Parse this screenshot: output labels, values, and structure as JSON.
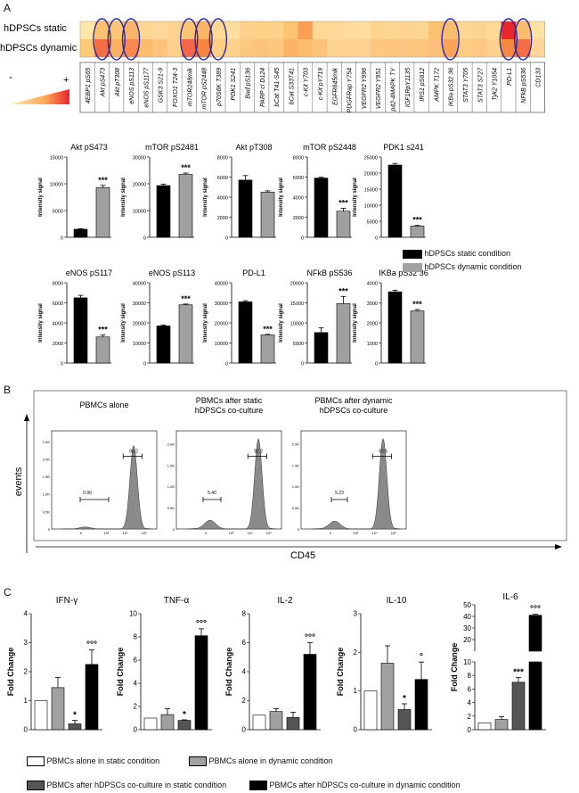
{
  "panels": {
    "a": "A",
    "b": "B",
    "c": "C"
  },
  "heatmap": {
    "row_labels": [
      "hDPSCs static",
      "hDPSCs dynamic"
    ],
    "scale_minus": "-",
    "scale_plus": "+",
    "columns": [
      "4EBP1 pS65",
      "Akt pS473",
      "Akt pT308",
      "eNOS pS113",
      "eNOS pS1177",
      "GSK3 S21-9",
      "FOXO1 T24-3",
      "mTOR248mik",
      "mTOR pS2448",
      "p70S6K T389",
      "PDK1 S241",
      "Bad pS136",
      "PARP cl D124",
      "bCat T41-S45",
      "bCat S33T41",
      "c-Kit Y703",
      "c-Kit pY719",
      "EGFR845mik",
      "PDGFRap Y754",
      "VEGFR2 Y996",
      "VEGFR2 Y951",
      "p42-4MAPK TY",
      "IGF1RpY1135",
      "IRS1 pS612",
      "AMPK T172",
      "IKBa pS32 36",
      "STAT3 Y705",
      "STAT3 S727",
      "Tyk2 Y1054",
      "PD-L1",
      "NFkB pS536",
      "CD133"
    ],
    "static_colors": [
      "#fde7a9",
      "#fcc171",
      "#fcc679",
      "#fbb56a",
      "#fcd692",
      "#fdd89a",
      "#fcd391",
      "#fcc576",
      "#fbb466",
      "#fdd995",
      "#fddda0",
      "#fcd08a",
      "#fcd087",
      "#fcd289",
      "#fcc473",
      "#fa9d55",
      "#fdd896",
      "#fdd899",
      "#fddb9c",
      "#fdde9f",
      "#fcd48e",
      "#fdd792",
      "#fdd48f",
      "#fcd590",
      "#fbc070",
      "#fbbd6d",
      "#fdd695",
      "#fcd391",
      "#fdd996",
      "#e8262b",
      "#fbbd6c",
      "#fde2a4"
    ],
    "dynamic_colors": [
      "#fcc979",
      "#f46d43",
      "#fbb064",
      "#f9874e",
      "#fbbd6d",
      "#fcc37a",
      "#fdd08b",
      "#f4654a",
      "#f8843f",
      "#fcce84",
      "#fcd28b",
      "#fcc87d",
      "#fcc47a",
      "#fcc87d",
      "#fbb468",
      "#fcbe6e",
      "#fcc47a",
      "#fdd390",
      "#fdd191",
      "#fdd293",
      "#fcc881",
      "#fcc57b",
      "#fcc783",
      "#fcc57c",
      "#fcc07b",
      "#f9a35a",
      "#fccc83",
      "#fcc882",
      "#fdd08f",
      "#f7863f",
      "#f46d43",
      "#fdd596"
    ],
    "circled_columns": [
      1,
      2,
      3,
      7,
      8,
      9,
      25,
      29,
      30
    ]
  },
  "bar_legend": {
    "static": "hDPSCs static condition",
    "dynamic": "hDPSCs dynamic condition"
  },
  "chart_data": [
    {
      "type": "bar",
      "title": "Akt pS473",
      "ylabel": "Intensity signal",
      "ylim": [
        0,
        15000
      ],
      "ticks": [
        0,
        5000,
        10000,
        15000
      ],
      "categories": [
        "hDPSCs static condition",
        "hDPSCs dynamic condition"
      ],
      "values": [
        1500,
        9300
      ],
      "errors": [
        100,
        400
      ],
      "significance": "***",
      "colors": [
        "#000000",
        "#a0a0a0"
      ]
    },
    {
      "type": "bar",
      "title": "mTOR pS2481",
      "ylabel": "Intensity signal",
      "ylim": [
        0,
        30000
      ],
      "ticks": [
        0,
        10000,
        20000,
        30000
      ],
      "categories": [
        "hDPSCs static condition",
        "hDPSCs dynamic condition"
      ],
      "values": [
        19300,
        23500
      ],
      "errors": [
        500,
        500
      ],
      "significance": "***",
      "colors": [
        "#000000",
        "#a0a0a0"
      ]
    },
    {
      "type": "bar",
      "title": "Akt pT308",
      "ylabel": "Intensity signal",
      "ylim": [
        0,
        8000
      ],
      "ticks": [
        0,
        2000,
        4000,
        6000,
        8000
      ],
      "categories": [
        "hDPSCs static condition",
        "hDPSCs dynamic condition"
      ],
      "values": [
        5700,
        4500
      ],
      "errors": [
        450,
        130
      ],
      "significance": "",
      "colors": [
        "#000000",
        "#a0a0a0"
      ]
    },
    {
      "type": "bar",
      "title": "mTOR pS2448",
      "ylabel": "Intensity signal",
      "ylim": [
        0,
        8000
      ],
      "ticks": [
        0,
        2000,
        4000,
        6000,
        8000
      ],
      "categories": [
        "hDPSCs static condition",
        "hDPSCs dynamic condition"
      ],
      "values": [
        5900,
        2600
      ],
      "errors": [
        80,
        300
      ],
      "significance": "***",
      "colors": [
        "#000000",
        "#a0a0a0"
      ]
    },
    {
      "type": "bar",
      "title": "PDK1 s241",
      "ylabel": "Intensity signal",
      "ylim": [
        0,
        25000
      ],
      "ticks": [
        0,
        5000,
        10000,
        15000,
        20000,
        25000
      ],
      "categories": [
        "hDPSCs static condition",
        "hDPSCs dynamic condition"
      ],
      "values": [
        22500,
        3500
      ],
      "errors": [
        500,
        200
      ],
      "significance": "***",
      "colors": [
        "#000000",
        "#a0a0a0"
      ]
    },
    {
      "type": "bar",
      "title": "eNOS pS117",
      "ylabel": "Intensity signal",
      "ylim": [
        0,
        8000
      ],
      "ticks": [
        0,
        2000,
        4000,
        6000,
        8000
      ],
      "categories": [
        "hDPSCs static condition",
        "hDPSCs dynamic condition"
      ],
      "values": [
        6500,
        2600
      ],
      "errors": [
        250,
        200
      ],
      "significance": "***",
      "colors": [
        "#000000",
        "#a0a0a0"
      ]
    },
    {
      "type": "bar",
      "title": "eNOS pS113",
      "ylabel": "Intensity signal",
      "ylim": [
        0,
        40000
      ],
      "ticks": [
        0,
        10000,
        20000,
        30000,
        40000
      ],
      "categories": [
        "hDPSCs static condition",
        "hDPSCs dynamic condition"
      ],
      "values": [
        18500,
        29000
      ],
      "errors": [
        500,
        400
      ],
      "significance": "***",
      "colors": [
        "#000000",
        "#a0a0a0"
      ]
    },
    {
      "type": "bar",
      "title": "PD-L1",
      "ylabel": "Intensity signal",
      "ylim": [
        0,
        40000
      ],
      "ticks": [
        0,
        10000,
        20000,
        30000,
        40000
      ],
      "categories": [
        "hDPSCs static condition",
        "hDPSCs dynamic condition"
      ],
      "values": [
        30500,
        14000
      ],
      "errors": [
        600,
        300
      ],
      "significance": "***",
      "colors": [
        "#000000",
        "#a0a0a0"
      ]
    },
    {
      "type": "bar",
      "title": "NFkB pS536",
      "ylabel": "Intensity signal",
      "ylim": [
        0,
        20000
      ],
      "ticks": [
        0,
        5000,
        10000,
        15000,
        20000
      ],
      "categories": [
        "hDPSCs static condition",
        "hDPSCs dynamic condition"
      ],
      "values": [
        7600,
        14800
      ],
      "errors": [
        1200,
        1800
      ],
      "significance": "***",
      "colors": [
        "#000000",
        "#a0a0a0"
      ]
    },
    {
      "type": "bar",
      "title": "IKBa pS32 36",
      "ylabel": "Intensity signal",
      "ylim": [
        0,
        4000
      ],
      "ticks": [
        0,
        1000,
        2000,
        3000,
        4000
      ],
      "categories": [
        "hDPSCs static condition",
        "hDPSCs dynamic condition"
      ],
      "values": [
        3550,
        2600
      ],
      "errors": [
        80,
        70
      ],
      "significance": "***",
      "colors": [
        "#000000",
        "#a0a0a0"
      ]
    },
    {
      "type": "histogram",
      "title": "PBMCs alone",
      "ylabel": "events",
      "xlabel": "CD45",
      "gates": [
        {
          "label": "0.90"
        },
        {
          "label": "98.2"
        }
      ],
      "y_ticks": [
        "0",
        "0.5K",
        "1.0K",
        "1.5K",
        "2.0K",
        "2.5K"
      ],
      "x_ticks": [
        "0",
        "10³",
        "10⁴",
        "10⁵"
      ]
    },
    {
      "type": "histogram",
      "title": "PBMCs after static\nhDPSCs co-culture",
      "xlabel": "CD45",
      "gates": [
        {
          "label": "5.40"
        },
        {
          "label": "92.2"
        }
      ],
      "y_ticks": [
        "0",
        "0.5K",
        "1.0K",
        "1.5K",
        "2.0K"
      ],
      "x_ticks": [
        "0",
        "10³",
        "10⁴",
        "10⁵"
      ]
    },
    {
      "type": "histogram",
      "title": "PBMCs after dynamic\nhDPSCs co-culture",
      "xlabel": "CD45",
      "gates": [
        {
          "label": "5.23"
        },
        {
          "label": "92.5"
        }
      ],
      "y_ticks": [
        "0",
        "0.5K",
        "1.0K",
        "1.5K",
        "2.0K"
      ],
      "x_ticks": [
        "0",
        "10³",
        "10⁴",
        "10⁵"
      ]
    },
    {
      "type": "bar",
      "title": "IFN-γ",
      "ylabel": "Fold Change",
      "ylim": [
        0,
        4
      ],
      "ticks": [
        0,
        1,
        2,
        3,
        4
      ],
      "categories": [
        "PBMCs alone in static condition",
        "PBMCs alone in dynamic condition",
        "PBMCs after hDPSCs co-culture in static condition",
        "PBMCs after hDPSCs co-culture in dynamic condition"
      ],
      "values": [
        1.0,
        1.45,
        0.2,
        2.25
      ],
      "errors": [
        0,
        0.35,
        0.12,
        0.5
      ],
      "significance": [
        "",
        "",
        "*",
        "°°°"
      ],
      "colors": [
        "#ffffff",
        "#a0a0a0",
        "#555555",
        "#000000"
      ]
    },
    {
      "type": "bar",
      "title": "TNF-α",
      "ylabel": "Fold Change",
      "ylim": [
        0,
        10
      ],
      "ticks": [
        0,
        2,
        4,
        6,
        8,
        10
      ],
      "categories": [
        "PBMCs alone in static condition",
        "PBMCs alone in dynamic condition",
        "PBMCs after hDPSCs co-culture in static condition",
        "PBMCs after hDPSCs co-culture in dynamic condition"
      ],
      "values": [
        1.0,
        1.3,
        0.8,
        8.1
      ],
      "errors": [
        0,
        0.5,
        0.05,
        0.6
      ],
      "significance": [
        "",
        "",
        "*",
        "°°°"
      ],
      "colors": [
        "#ffffff",
        "#a0a0a0",
        "#555555",
        "#000000"
      ]
    },
    {
      "type": "bar",
      "title": "IL-2",
      "ylabel": "Fold Change",
      "ylim": [
        0,
        8
      ],
      "ticks": [
        0,
        2,
        4,
        6,
        8
      ],
      "categories": [
        "PBMCs alone in static condition",
        "PBMCs alone in dynamic condition",
        "PBMCs after hDPSCs co-culture in static condition",
        "PBMCs after hDPSCs co-culture in dynamic condition"
      ],
      "values": [
        1.0,
        1.25,
        0.85,
        5.2
      ],
      "errors": [
        0,
        0.2,
        0.35,
        0.8
      ],
      "significance": [
        "",
        "",
        "",
        "°°°"
      ],
      "colors": [
        "#ffffff",
        "#a0a0a0",
        "#555555",
        "#000000"
      ]
    },
    {
      "type": "bar",
      "title": "IL-10",
      "ylabel": "Fold Change",
      "ylim": [
        0,
        3
      ],
      "ticks": [
        0,
        1,
        2,
        3
      ],
      "categories": [
        "PBMCs alone in static condition",
        "PBMCs alone in dynamic condition",
        "PBMCs after hDPSCs co-culture in static condition",
        "PBMCs after hDPSCs co-culture in dynamic condition"
      ],
      "values": [
        1.0,
        1.72,
        0.52,
        1.3
      ],
      "errors": [
        0,
        0.45,
        0.15,
        0.45
      ],
      "significance": [
        "",
        "",
        "*",
        "°"
      ],
      "colors": [
        "#ffffff",
        "#a0a0a0",
        "#555555",
        "#000000"
      ]
    },
    {
      "type": "bar",
      "title": "IL-6",
      "ylabel": "Fold Change",
      "axis_break": true,
      "ylim_lower": [
        0,
        10
      ],
      "ylim_upper": [
        10,
        50
      ],
      "ticks_lower": [
        0,
        2,
        4,
        6,
        8,
        10
      ],
      "ticks_upper": [
        20,
        30,
        40,
        50
      ],
      "categories": [
        "PBMCs alone in static condition",
        "PBMCs alone in dynamic condition",
        "PBMCs after hDPSCs co-culture in static condition",
        "PBMCs after hDPSCs co-culture in dynamic condition"
      ],
      "values": [
        1.0,
        1.5,
        7.0,
        41
      ],
      "errors": [
        0,
        0.4,
        0.7,
        1.0
      ],
      "significance": [
        "",
        "",
        "***",
        "°°°"
      ],
      "colors": [
        "#ffffff",
        "#a0a0a0",
        "#555555",
        "#000000"
      ]
    }
  ],
  "cytokine_legend": [
    "PBMCs alone in static condition",
    "PBMCs alone in dynamic condition",
    "PBMCs after hDPSCs co-culture in static condition",
    "PBMCs after hDPSCs co-culture in dynamic condition"
  ]
}
